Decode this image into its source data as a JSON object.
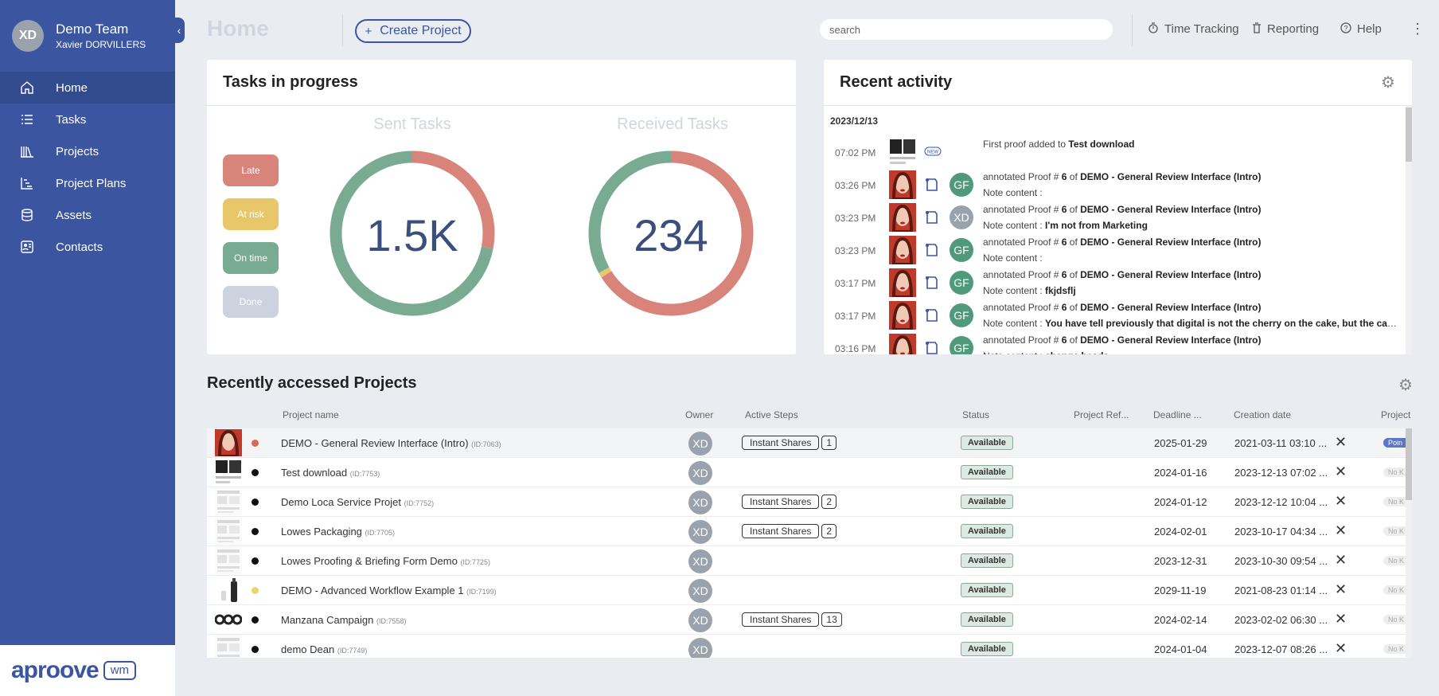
{
  "team": {
    "initials": "XD",
    "name": "Demo Team",
    "user": "Xavier DORVILLERS"
  },
  "nav": [
    {
      "label": "Home",
      "icon": "home-icon",
      "active": true
    },
    {
      "label": "Tasks",
      "icon": "list-icon"
    },
    {
      "label": "Projects",
      "icon": "books-icon"
    },
    {
      "label": "Project Plans",
      "icon": "gantt-icon"
    },
    {
      "label": "Assets",
      "icon": "database-icon"
    },
    {
      "label": "Contacts",
      "icon": "contacts-icon"
    }
  ],
  "brand": {
    "name": "aproove",
    "suffix": "wm"
  },
  "header": {
    "title": "Home",
    "create_label": "Create Project",
    "search_placeholder": "search",
    "time_tracking": "Time Tracking",
    "reporting": "Reporting",
    "help": "Help"
  },
  "tasks": {
    "title": "Tasks in progress",
    "chips": [
      {
        "label": "Late",
        "color": "#d9847a"
      },
      {
        "label": "At risk",
        "color": "#e8c76a"
      },
      {
        "label": "On time",
        "color": "#79ab92"
      },
      {
        "label": "Done",
        "color": "#cdd3de"
      }
    ],
    "sent": {
      "title": "Sent Tasks",
      "value": "1.5K",
      "late_fraction": 0.28,
      "risk_fraction": 0.0,
      "ontime_fraction": 0.72
    },
    "received": {
      "title": "Received Tasks",
      "value": "234",
      "late_fraction": 0.66,
      "risk_fraction": 0.01,
      "ontime_fraction": 0.33
    }
  },
  "activity": {
    "title": "Recent activity",
    "date": "2023/12/13",
    "rows": [
      {
        "time": "07:02 PM",
        "type": "new",
        "avatar": "",
        "l1_pre": "First proof added to ",
        "l1_bold": "Test download",
        "l1_mid": "",
        "l1_bold2": "",
        "l2_pre": "",
        "l2_bold": ""
      },
      {
        "time": "03:26 PM",
        "type": "note",
        "avatar": "GF",
        "avatar_color": "#4e9a7a",
        "l1_pre": "annotated Proof # ",
        "l1_bold": "6",
        "l1_mid": " of ",
        "l1_bold2": "DEMO - General Review Interface (Intro)",
        "l2_pre": "Note content :",
        "l2_bold": ""
      },
      {
        "time": "03:23 PM",
        "type": "note",
        "avatar": "XD",
        "avatar_color": "#9aa3ad",
        "l1_pre": "annotated Proof # ",
        "l1_bold": "6",
        "l1_mid": " of ",
        "l1_bold2": "DEMO - General Review Interface (Intro)",
        "l2_pre": "Note content : ",
        "l2_bold": "I'm not from Marketing"
      },
      {
        "time": "03:23 PM",
        "type": "note",
        "avatar": "GF",
        "avatar_color": "#4e9a7a",
        "l1_pre": "annotated Proof # ",
        "l1_bold": "6",
        "l1_mid": " of ",
        "l1_bold2": "DEMO - General Review Interface (Intro)",
        "l2_pre": "Note content :",
        "l2_bold": ""
      },
      {
        "time": "03:17 PM",
        "type": "note",
        "avatar": "GF",
        "avatar_color": "#4e9a7a",
        "l1_pre": "annotated Proof # ",
        "l1_bold": "6",
        "l1_mid": " of ",
        "l1_bold2": "DEMO - General Review Interface (Intro)",
        "l2_pre": "Note content : ",
        "l2_bold": "fkjdsflj"
      },
      {
        "time": "03:17 PM",
        "type": "note",
        "avatar": "GF",
        "avatar_color": "#4e9a7a",
        "l1_pre": "annotated Proof # ",
        "l1_bold": "6",
        "l1_mid": " of ",
        "l1_bold2": "DEMO - General Review Interface (Intro)",
        "l2_pre": "Note content : ",
        "l2_bold": "You have tell previously that digital is not the cherry on the cake, but the cake"
      },
      {
        "time": "03:16 PM",
        "type": "note",
        "avatar": "GF",
        "avatar_color": "#4e9a7a",
        "l1_pre": "annotated Proof # ",
        "l1_bold": "6",
        "l1_mid": " of ",
        "l1_bold2": "DEMO - General Review Interface (Intro)",
        "l2_pre": "Note content : ",
        "l2_bold": "change heads"
      }
    ]
  },
  "projects": {
    "title": "Recently accessed Projects",
    "columns": [
      "Project name",
      "Owner",
      "Active Steps",
      "Status",
      "Project Ref...",
      "Deadline ...",
      "Creation date",
      "Project"
    ],
    "rows": [
      {
        "name": "DEMO - General Review Interface (Intro)",
        "id": "(ID:7063)",
        "dot": "#d9685b",
        "thumb": "portrait",
        "owner": "XD",
        "step": "Instant Shares",
        "count": "1",
        "status": "Available",
        "deadline": "2025-01-29",
        "created": "2021-03-11 03:10 ...",
        "pill": "Poin",
        "pill_blue": true
      },
      {
        "name": "Test download",
        "id": "(ID:7753)",
        "dot": "#111111",
        "thumb": "dark",
        "owner": "XD",
        "step": "",
        "count": "",
        "status": "Available",
        "deadline": "2024-01-16",
        "created": "2023-12-13 07:02 ...",
        "pill": "No K",
        "pill_blue": false
      },
      {
        "name": "Demo Loca Service Projet",
        "id": "(ID:7752)",
        "dot": "#111111",
        "thumb": "doc",
        "owner": "XD",
        "step": "Instant Shares",
        "count": "2",
        "status": "Available",
        "deadline": "2024-01-12",
        "created": "2023-12-12 10:04 ...",
        "pill": "No K",
        "pill_blue": false
      },
      {
        "name": "Lowes Packaging",
        "id": "(ID:7705)",
        "dot": "#111111",
        "thumb": "doc",
        "owner": "XD",
        "step": "Instant Shares",
        "count": "2",
        "status": "Available",
        "deadline": "2024-02-01",
        "created": "2023-10-17 04:34 ...",
        "pill": "No K",
        "pill_blue": false
      },
      {
        "name": "Lowes Proofing & Briefing Form Demo",
        "id": "(ID:7725)",
        "dot": "#111111",
        "thumb": "doc",
        "owner": "XD",
        "step": "",
        "count": "",
        "status": "Available",
        "deadline": "2023-12-31",
        "created": "2023-10-30 09:54 ...",
        "pill": "No K",
        "pill_blue": false
      },
      {
        "name": "DEMO - Advanced Workflow Example 1",
        "id": "(ID:7199)",
        "dot": "#e8d76a",
        "thumb": "bottle",
        "owner": "XD",
        "step": "",
        "count": "",
        "status": "Available",
        "deadline": "2029-11-19",
        "created": "2021-08-23 01:14 ...",
        "pill": "No K",
        "pill_blue": false
      },
      {
        "name": "Manzana Campaign",
        "id": "(ID:7558)",
        "dot": "#111111",
        "thumb": "circles",
        "owner": "XD",
        "step": "Instant Shares",
        "count": "13",
        "status": "Available",
        "deadline": "2024-02-14",
        "created": "2023-02-02 06:30 ...",
        "pill": "No K",
        "pill_blue": false
      },
      {
        "name": "demo Dean",
        "id": "(ID:7749)",
        "dot": "#111111",
        "thumb": "doc",
        "owner": "XD",
        "step": "",
        "count": "",
        "status": "Available",
        "deadline": "2024-01-04",
        "created": "2023-12-07 08:26 ...",
        "pill": "No K",
        "pill_blue": false
      }
    ]
  }
}
